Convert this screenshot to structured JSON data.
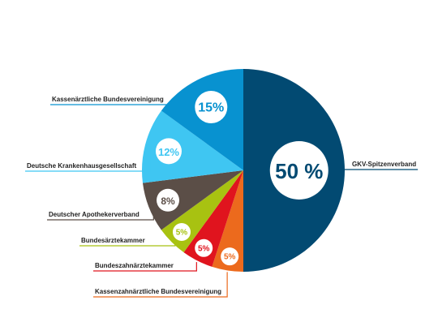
{
  "chart_data": {
    "type": "pie",
    "title": "",
    "slices": [
      {
        "label": "GKV-Spitzenverband",
        "value": 50,
        "value_label": "50 %",
        "color": "#024a72"
      },
      {
        "label": "Kassenzahnärztliche Bundesvereinigung",
        "value": 5,
        "value_label": "5%",
        "color": "#ec6a1d"
      },
      {
        "label": "Bundeszahnärztekammer",
        "value": 5,
        "value_label": "5%",
        "color": "#e0141e"
      },
      {
        "label": "Bundesärztekammer",
        "value": 5,
        "value_label": "5%",
        "color": "#a8c211"
      },
      {
        "label": "Deutscher Apothekerverband",
        "value": 8,
        "value_label": "8%",
        "color": "#5b4e47"
      },
      {
        "label": "Deutsche Krankenhausgesellschaft",
        "value": 12,
        "value_label": "12%",
        "color": "#3fc6f2"
      },
      {
        "label": "Kassenärztliche Bundesvereinigung",
        "value": 15,
        "value_label": "15%",
        "color": "#0892d0"
      }
    ]
  }
}
